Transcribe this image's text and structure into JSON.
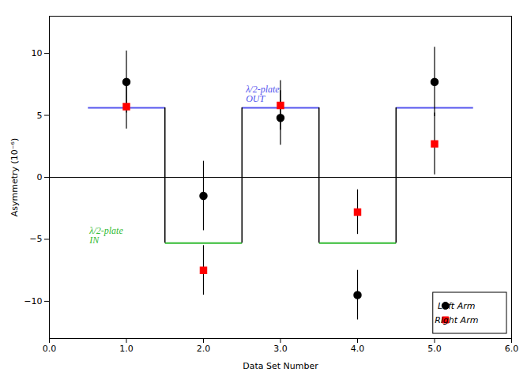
{
  "chart_data": {
    "type": "scatter",
    "xlabel": "Data Set Number",
    "ylabel": "Asymmetry (10⁻⁶)",
    "xlim": [
      0,
      6
    ],
    "ylim": [
      -13,
      13
    ],
    "xticks": [
      0,
      1,
      2,
      3,
      4,
      5,
      6
    ],
    "yticks": [
      -10,
      -5,
      0,
      5,
      10
    ],
    "grid": false,
    "legend": "lower right",
    "series": [
      {
        "name": "Left Arm",
        "color": "black",
        "marker": "circle",
        "x": [
          1,
          2,
          3,
          4,
          5
        ],
        "values": [
          7.7,
          -1.5,
          4.8,
          -9.5,
          7.7
        ],
        "errors": [
          2.5,
          2.8,
          2.2,
          2.0,
          2.8
        ]
      },
      {
        "name": "Right Arm",
        "color": "red",
        "marker": "square",
        "x": [
          1,
          2,
          3,
          4,
          5
        ],
        "values": [
          5.7,
          -7.5,
          5.8,
          -2.8,
          2.7
        ],
        "errors": [
          1.8,
          2.0,
          2.0,
          1.8,
          2.5
        ]
      }
    ],
    "levels": [
      {
        "y": 5.6,
        "color": "#5555ee",
        "spans": [
          [
            0.5,
            1.5
          ],
          [
            2.5,
            3.5
          ],
          [
            4.5,
            5.5
          ]
        ]
      },
      {
        "y": -5.3,
        "color": "#33bb33",
        "spans": [
          [
            1.5,
            2.5
          ],
          [
            3.5,
            4.5
          ]
        ]
      }
    ],
    "connectors": {
      "x": [
        1.5,
        2.5,
        3.5,
        4.5
      ],
      "y": [
        5.6,
        -5.3
      ]
    },
    "reference_lines": [
      {
        "y": 0
      }
    ],
    "annotations": [
      {
        "text": "λ/2-plate\nOUT",
        "x": 2.55,
        "y": 6.1,
        "color": "#5555ee"
      },
      {
        "text": "λ/2-plate\nIN",
        "x": 0.52,
        "y": -4.0,
        "color": "#33bb33"
      }
    ]
  }
}
